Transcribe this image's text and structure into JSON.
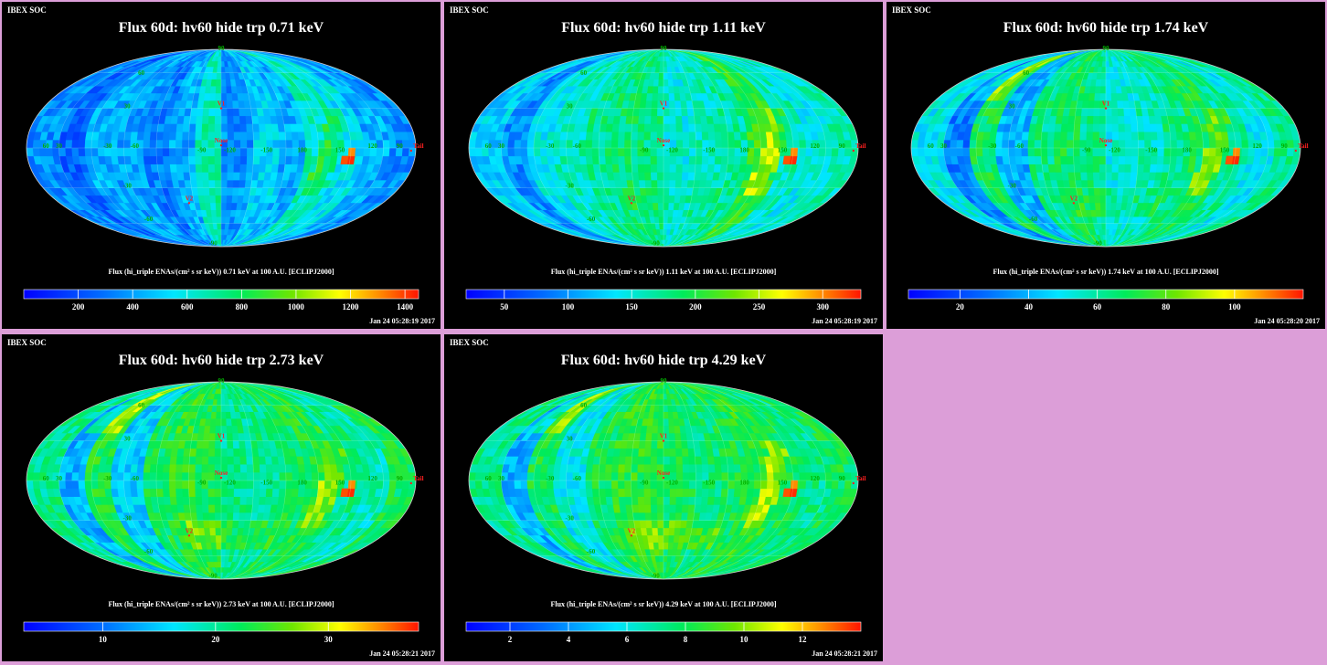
{
  "header_label": "IBEX SOC",
  "colors": {
    "background": "#dc9ed8",
    "panel": "#000000",
    "marker_text": "#ff2020",
    "grid_text": "#00b000"
  },
  "grid_labels": {
    "lon": [
      "60",
      "30",
      "-30",
      "-60",
      "-90",
      "-120",
      "-150",
      "180",
      "150",
      "120",
      "90"
    ],
    "lat": [
      "60",
      "30",
      "-30",
      "-60",
      "-90",
      "90"
    ]
  },
  "markers": {
    "v1": "V1",
    "v2": "V2",
    "nose": "Nose",
    "tail": "Tail"
  },
  "panels": [
    {
      "title": "Flux 60d: hv60 hide trp 0.71 keV",
      "colorbar_title": "Flux (hi_triple ENAs/(cm² s sr keV)) 0.71 keV at 100 A.U. [ECLIPJ2000]",
      "timestamp": "Jan 24 05:28:19 2017",
      "chart_data": {
        "type": "heatmap",
        "projection": "mollweide",
        "energy_keV": 0.71,
        "vmin": 0,
        "vmax": 1450,
        "ticks": [
          "200",
          "400",
          "600",
          "800",
          "1000",
          "1200",
          "1400"
        ],
        "tick_values": [
          200,
          400,
          600,
          800,
          1000,
          1200,
          1400
        ],
        "levels": [
          0.25,
          0.18,
          0.3,
          0.28,
          0.22,
          0.3,
          0.45,
          0.25,
          0.35,
          0.3,
          0.45,
          0.38,
          0.3,
          0.25
        ]
      }
    },
    {
      "title": "Flux 60d: hv60 hide trp 1.11 keV",
      "colorbar_title": "Flux (hi_triple ENAs/(cm² s sr keV)) 1.11 keV at 100 A.U. [ECLIPJ2000]",
      "timestamp": "Jan 24 05:28:19 2017",
      "chart_data": {
        "type": "heatmap",
        "projection": "mollweide",
        "energy_keV": 1.11,
        "vmin": 20,
        "vmax": 330,
        "ticks": [
          "50",
          "100",
          "150",
          "200",
          "250",
          "300"
        ],
        "tick_values": [
          50,
          100,
          150,
          200,
          250,
          300
        ],
        "levels": [
          0.35,
          0.25,
          0.4,
          0.45,
          0.5,
          0.52,
          0.5,
          0.42,
          0.45,
          0.48,
          0.6,
          0.45,
          0.4,
          0.45
        ]
      }
    },
    {
      "title": "Flux 60d: hv60 hide trp 1.74 keV",
      "colorbar_title": "Flux (hi_triple ENAs/(cm² s sr keV)) 1.74 keV at 100 A.U. [ECLIPJ2000]",
      "timestamp": "Jan 24 05:28:20 2017",
      "chart_data": {
        "type": "heatmap",
        "projection": "mollweide",
        "energy_keV": 1.74,
        "vmin": 5,
        "vmax": 120,
        "ticks": [
          "20",
          "40",
          "60",
          "80",
          "100"
        ],
        "tick_values": [
          20,
          40,
          60,
          80,
          100
        ],
        "levels": [
          0.4,
          0.22,
          0.55,
          0.3,
          0.5,
          0.55,
          0.5,
          0.42,
          0.45,
          0.5,
          0.55,
          0.48,
          0.4,
          0.5
        ]
      }
    },
    {
      "title": "Flux 60d: hv60 hide trp 2.73 keV",
      "colorbar_title": "Flux (hi_triple ENAs/(cm² s sr keV)) 2.73 keV at 100 A.U. [ECLIPJ2000]",
      "timestamp": "Jan 24 05:28:21 2017",
      "chart_data": {
        "type": "heatmap",
        "projection": "mollweide",
        "energy_keV": 2.73,
        "vmin": 3,
        "vmax": 38,
        "ticks": [
          "10",
          "20",
          "30"
        ],
        "tick_values": [
          10,
          20,
          30
        ],
        "levels": [
          0.5,
          0.3,
          0.58,
          0.35,
          0.55,
          0.6,
          0.58,
          0.5,
          0.5,
          0.55,
          0.58,
          0.5,
          0.45,
          0.55
        ]
      }
    },
    {
      "title": "Flux 60d: hv60 hide trp 4.29 keV",
      "colorbar_title": "Flux (hi_triple ENAs/(cm² s sr keV)) 4.29 keV at 100 A.U. [ECLIPJ2000]",
      "timestamp": "Jan 24 05:28:21 2017",
      "chart_data": {
        "type": "heatmap",
        "projection": "mollweide",
        "energy_keV": 4.29,
        "vmin": 0.5,
        "vmax": 14,
        "ticks": [
          "2",
          "4",
          "6",
          "8",
          "10",
          "12"
        ],
        "tick_values": [
          2,
          4,
          6,
          8,
          10,
          12
        ],
        "levels": [
          0.5,
          0.3,
          0.55,
          0.4,
          0.55,
          0.6,
          0.6,
          0.55,
          0.52,
          0.55,
          0.6,
          0.55,
          0.5,
          0.55
        ]
      }
    }
  ]
}
